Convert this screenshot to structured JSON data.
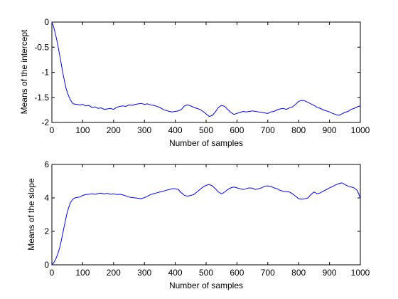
{
  "chart_data": [
    {
      "type": "line",
      "xlabel": "Number of samples",
      "ylabel": "Means of the intercept",
      "xlim": [
        0,
        1000
      ],
      "ylim": [
        -2,
        0
      ],
      "xticks": [
        0,
        100,
        200,
        300,
        400,
        500,
        600,
        700,
        800,
        900,
        1000
      ],
      "yticks": [
        -2,
        -1.5,
        -1,
        -0.5,
        0
      ],
      "xtick_labels": [
        "0",
        "100",
        "200",
        "300",
        "400",
        "500",
        "600",
        "700",
        "800",
        "900",
        "1000"
      ],
      "ytick_labels": [
        "-2",
        "-1.5",
        "-1",
        "-0.5",
        "0"
      ],
      "grid": false,
      "series": [
        {
          "color": "#0000ff",
          "x": [
            0,
            5,
            10,
            15,
            20,
            25,
            30,
            35,
            40,
            45,
            50,
            55,
            60,
            65,
            70,
            80,
            90,
            100,
            110,
            120,
            130,
            140,
            150,
            160,
            170,
            180,
            190,
            200,
            210,
            220,
            230,
            240,
            250,
            260,
            270,
            280,
            290,
            300,
            310,
            320,
            330,
            340,
            350,
            360,
            370,
            380,
            390,
            400,
            410,
            420,
            430,
            440,
            450,
            460,
            470,
            480,
            490,
            500,
            510,
            520,
            530,
            540,
            550,
            560,
            570,
            580,
            590,
            600,
            610,
            620,
            630,
            640,
            650,
            660,
            670,
            680,
            690,
            700,
            710,
            720,
            730,
            740,
            750,
            760,
            770,
            780,
            790,
            800,
            810,
            820,
            830,
            840,
            850,
            860,
            870,
            880,
            890,
            900,
            910,
            920,
            930,
            940,
            950,
            960,
            970,
            980,
            990,
            1000
          ],
          "y": [
            0,
            -0.08,
            -0.2,
            -0.33,
            -0.48,
            -0.65,
            -0.82,
            -1.0,
            -1.15,
            -1.3,
            -1.4,
            -1.48,
            -1.55,
            -1.6,
            -1.63,
            -1.64,
            -1.65,
            -1.64,
            -1.67,
            -1.66,
            -1.7,
            -1.69,
            -1.72,
            -1.71,
            -1.74,
            -1.73,
            -1.72,
            -1.74,
            -1.7,
            -1.68,
            -1.67,
            -1.68,
            -1.65,
            -1.66,
            -1.64,
            -1.63,
            -1.62,
            -1.64,
            -1.63,
            -1.65,
            -1.66,
            -1.68,
            -1.7,
            -1.74,
            -1.76,
            -1.78,
            -1.79,
            -1.78,
            -1.77,
            -1.74,
            -1.67,
            -1.65,
            -1.67,
            -1.7,
            -1.72,
            -1.74,
            -1.78,
            -1.83,
            -1.88,
            -1.86,
            -1.79,
            -1.7,
            -1.66,
            -1.68,
            -1.74,
            -1.8,
            -1.84,
            -1.82,
            -1.8,
            -1.78,
            -1.79,
            -1.78,
            -1.77,
            -1.78,
            -1.79,
            -1.8,
            -1.81,
            -1.82,
            -1.79,
            -1.78,
            -1.75,
            -1.73,
            -1.72,
            -1.74,
            -1.71,
            -1.69,
            -1.64,
            -1.58,
            -1.56,
            -1.57,
            -1.6,
            -1.63,
            -1.66,
            -1.7,
            -1.72,
            -1.75,
            -1.77,
            -1.79,
            -1.82,
            -1.84,
            -1.86,
            -1.83,
            -1.8,
            -1.78,
            -1.74,
            -1.72,
            -1.69,
            -1.67
          ]
        }
      ]
    },
    {
      "type": "line",
      "xlabel": "Number of samples",
      "ylabel": "Means of the slope",
      "xlim": [
        0,
        1000
      ],
      "ylim": [
        0,
        6
      ],
      "xticks": [
        0,
        100,
        200,
        300,
        400,
        500,
        600,
        700,
        800,
        900,
        1000
      ],
      "yticks": [
        0,
        2,
        4,
        6
      ],
      "xtick_labels": [
        "0",
        "100",
        "200",
        "300",
        "400",
        "500",
        "600",
        "700",
        "800",
        "900",
        "1000"
      ],
      "ytick_labels": [
        "0",
        "2",
        "4",
        "6"
      ],
      "grid": false,
      "series": [
        {
          "color": "#0000ff",
          "x": [
            0,
            5,
            10,
            15,
            20,
            25,
            30,
            35,
            40,
            45,
            50,
            55,
            60,
            65,
            70,
            75,
            80,
            90,
            100,
            110,
            120,
            130,
            140,
            150,
            160,
            170,
            180,
            190,
            200,
            210,
            220,
            230,
            240,
            250,
            260,
            270,
            280,
            290,
            300,
            310,
            320,
            330,
            340,
            350,
            360,
            370,
            380,
            390,
            400,
            410,
            420,
            430,
            440,
            450,
            460,
            470,
            480,
            490,
            500,
            510,
            520,
            530,
            540,
            550,
            560,
            570,
            580,
            590,
            600,
            610,
            620,
            630,
            640,
            650,
            660,
            670,
            680,
            690,
            700,
            710,
            720,
            730,
            740,
            750,
            760,
            770,
            780,
            790,
            800,
            810,
            820,
            830,
            840,
            850,
            860,
            870,
            880,
            890,
            900,
            910,
            920,
            930,
            940,
            950,
            960,
            970,
            980,
            990,
            1000
          ],
          "y": [
            0,
            0.1,
            0.25,
            0.45,
            0.7,
            1.0,
            1.4,
            1.85,
            2.3,
            2.75,
            3.15,
            3.45,
            3.7,
            3.85,
            3.95,
            4.0,
            4.02,
            4.05,
            4.15,
            4.2,
            4.22,
            4.25,
            4.22,
            4.26,
            4.28,
            4.24,
            4.27,
            4.22,
            4.25,
            4.2,
            4.22,
            4.18,
            4.12,
            4.05,
            4.02,
            4.0,
            3.98,
            3.95,
            4.02,
            4.1,
            4.2,
            4.25,
            4.3,
            4.35,
            4.4,
            4.45,
            4.5,
            4.55,
            4.55,
            4.5,
            4.3,
            4.15,
            4.1,
            4.15,
            4.2,
            4.35,
            4.5,
            4.65,
            4.75,
            4.8,
            4.72,
            4.55,
            4.35,
            4.25,
            4.35,
            4.5,
            4.6,
            4.65,
            4.6,
            4.55,
            4.5,
            4.55,
            4.6,
            4.58,
            4.5,
            4.55,
            4.6,
            4.7,
            4.72,
            4.68,
            4.6,
            4.55,
            4.45,
            4.4,
            4.38,
            4.35,
            4.25,
            4.1,
            3.95,
            3.92,
            3.95,
            4.0,
            4.2,
            4.35,
            4.25,
            4.3,
            4.4,
            4.5,
            4.6,
            4.68,
            4.78,
            4.85,
            4.9,
            4.8,
            4.7,
            4.65,
            4.6,
            4.45,
            4.0
          ]
        }
      ]
    }
  ]
}
